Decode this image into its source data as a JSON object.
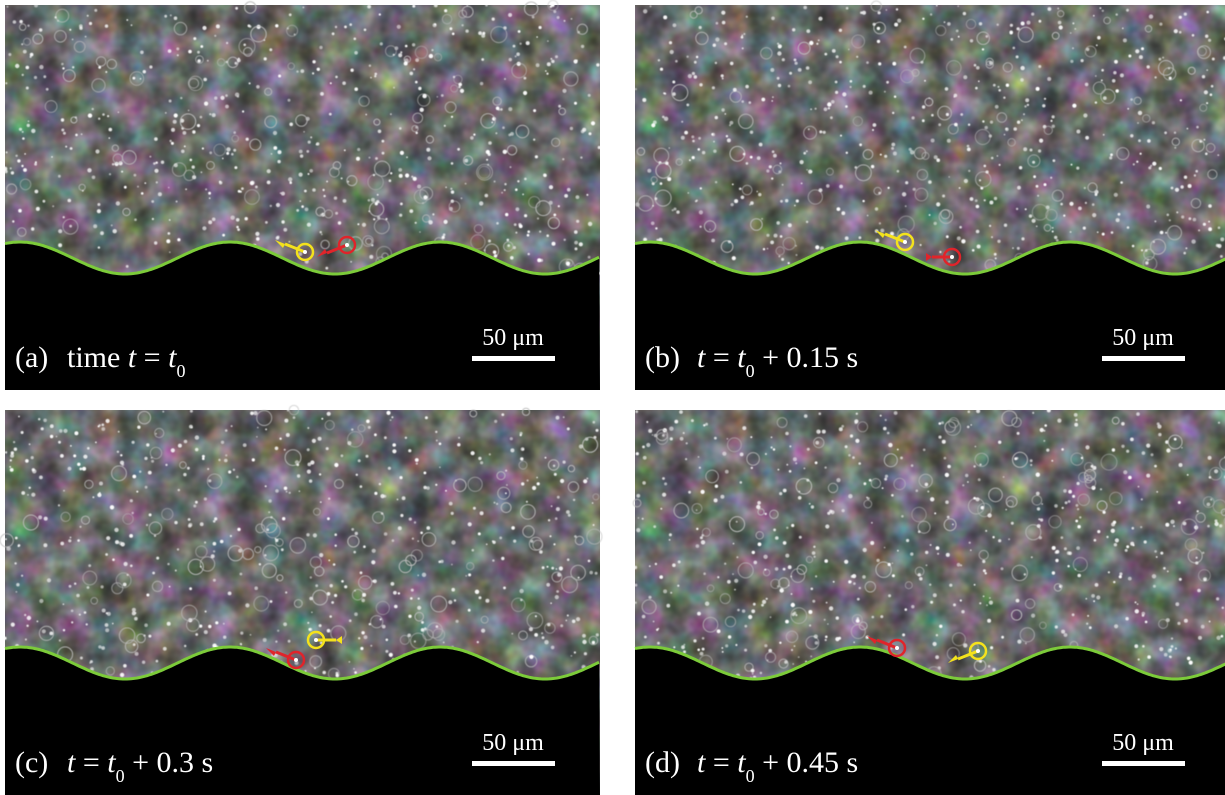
{
  "panels": [
    {
      "label": "(a)",
      "caption": [
        {
          "text": "time "
        },
        {
          "text": "t",
          "style": "italic"
        },
        {
          "text": " = "
        },
        {
          "text": "t",
          "style": "italic"
        },
        {
          "text": "0",
          "style": "sub"
        }
      ],
      "scale": "50 μm"
    },
    {
      "label": "(b)",
      "caption": [
        {
          "text": "t",
          "style": "italic"
        },
        {
          "text": " = "
        },
        {
          "text": "t",
          "style": "italic"
        },
        {
          "text": "0",
          "style": "sub"
        },
        {
          "text": " + 0.15 s"
        }
      ],
      "scale": "50 μm"
    },
    {
      "label": "(c)",
      "caption": [
        {
          "text": "t",
          "style": "italic"
        },
        {
          "text": " = "
        },
        {
          "text": "t",
          "style": "italic"
        },
        {
          "text": "0",
          "style": "sub"
        },
        {
          "text": " + 0.3 s"
        }
      ],
      "scale": "50 μm"
    },
    {
      "label": "(d)",
      "caption": [
        {
          "text": "t",
          "style": "italic"
        },
        {
          "text": " = "
        },
        {
          "text": "t",
          "style": "italic"
        },
        {
          "text": "0",
          "style": "sub"
        },
        {
          "text": " + 0.45 s"
        }
      ],
      "scale": "50 μm"
    }
  ]
}
